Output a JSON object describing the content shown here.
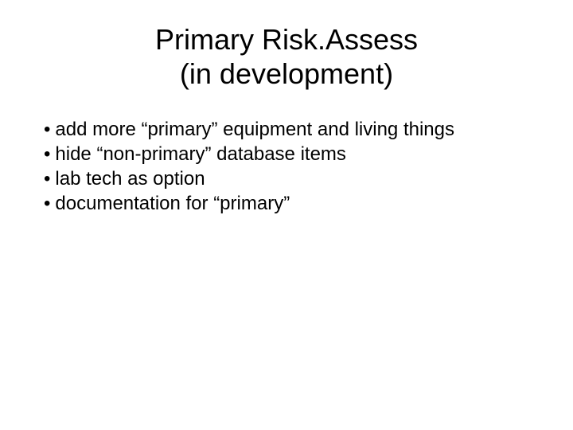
{
  "title": {
    "line1": "Primary Risk.Assess",
    "line2": "(in development)"
  },
  "bullets": {
    "items": [
      "add more “primary” equipment and living things",
      "hide “non-primary” database items",
      "lab tech as option",
      "documentation for “primary”"
    ]
  },
  "style": {
    "background_color": "#ffffff",
    "text_color": "#000000",
    "title_fontsize": 36,
    "body_fontsize": 24,
    "font_family": "Arial"
  }
}
